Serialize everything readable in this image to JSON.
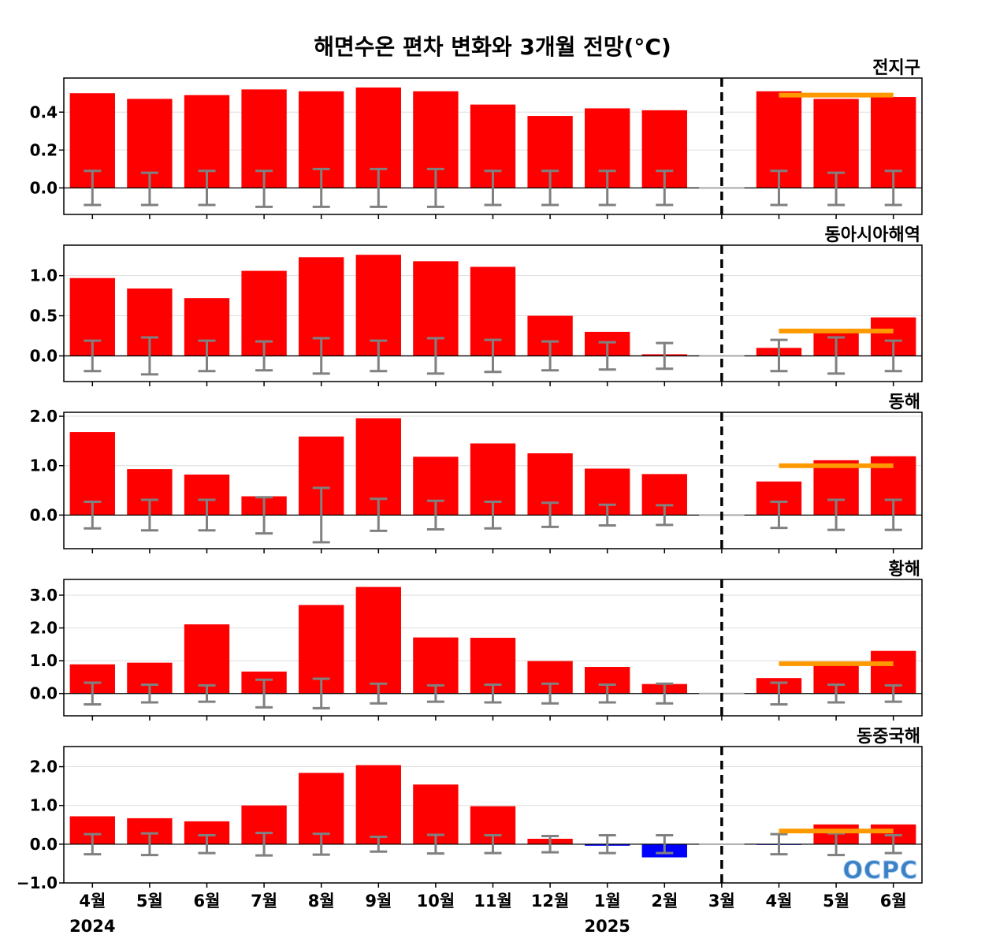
{
  "chart_data": {
    "type": "bar",
    "title": "해면수온 편차 변화와 3개월 전망(°C)",
    "months": [
      "4월",
      "5월",
      "6월",
      "7월",
      "8월",
      "9월",
      "10월",
      "11월",
      "12월",
      "1월",
      "2월",
      "3월",
      "4월",
      "5월",
      "6월"
    ],
    "years": [
      {
        "label": "2024",
        "index": 0
      },
      {
        "label": "2025",
        "index": 9
      }
    ],
    "forecast_start_index": 11,
    "logo": "OCPC",
    "colors": {
      "positive": "#ff0000",
      "negative": "#0000ff",
      "errorbar": "#808080",
      "forecast_line": "#ff9900",
      "grid": "#dddddd"
    },
    "panels": [
      {
        "name": "전지구",
        "ylim": [
          -0.14,
          0.58
        ],
        "ticks": [
          0.0,
          0.2,
          0.4
        ],
        "tick_labels": [
          "0.0",
          "0.2",
          "0.4"
        ],
        "values": [
          0.5,
          0.47,
          0.49,
          0.52,
          0.51,
          0.53,
          0.51,
          0.44,
          0.38,
          0.42,
          0.41,
          0.0,
          0.51,
          0.47,
          0.48
        ],
        "err_high": [
          0.09,
          0.08,
          0.09,
          0.09,
          0.1,
          0.1,
          0.1,
          0.09,
          0.09,
          0.09,
          0.09,
          null,
          0.09,
          0.08,
          0.09
        ],
        "err_low": [
          -0.09,
          -0.09,
          -0.09,
          -0.1,
          -0.1,
          -0.1,
          -0.1,
          -0.09,
          -0.09,
          -0.09,
          -0.09,
          null,
          -0.09,
          -0.09,
          -0.09
        ],
        "forecast_mean": 0.49
      },
      {
        "name": "동아시아해역",
        "ylim": [
          -0.32,
          1.38
        ],
        "ticks": [
          0.0,
          0.5,
          1.0
        ],
        "tick_labels": [
          "0.0",
          "0.5",
          "1.0"
        ],
        "values": [
          0.97,
          0.84,
          0.72,
          1.06,
          1.23,
          1.26,
          1.18,
          1.11,
          0.5,
          0.3,
          0.02,
          0.0,
          0.1,
          0.32,
          0.48
        ],
        "err_high": [
          0.19,
          0.23,
          0.19,
          0.18,
          0.22,
          0.19,
          0.22,
          0.2,
          0.18,
          0.17,
          0.16,
          null,
          0.2,
          0.23,
          0.19
        ],
        "err_low": [
          -0.19,
          -0.23,
          -0.19,
          -0.18,
          -0.22,
          -0.19,
          -0.22,
          -0.2,
          -0.18,
          -0.17,
          -0.16,
          null,
          -0.19,
          -0.22,
          -0.19
        ],
        "forecast_mean": 0.31
      },
      {
        "name": "동해",
        "ylim": [
          -0.68,
          2.08
        ],
        "ticks": [
          0.0,
          1.0,
          2.0
        ],
        "tick_labels": [
          "0.0",
          "1.0",
          "2.0"
        ],
        "values": [
          1.68,
          0.93,
          0.82,
          0.38,
          1.59,
          1.96,
          1.18,
          1.45,
          1.25,
          0.94,
          0.83,
          0.0,
          0.68,
          1.11,
          1.19
        ],
        "err_high": [
          0.27,
          0.31,
          0.31,
          0.36,
          0.55,
          0.33,
          0.29,
          0.27,
          0.25,
          0.21,
          0.2,
          null,
          0.27,
          0.31,
          0.31
        ],
        "err_low": [
          -0.27,
          -0.31,
          -0.31,
          -0.37,
          -0.55,
          -0.32,
          -0.29,
          -0.27,
          -0.24,
          -0.21,
          -0.2,
          null,
          -0.26,
          -0.3,
          -0.3
        ],
        "forecast_mean": 1.0
      },
      {
        "name": "황해",
        "ylim": [
          -0.68,
          3.48
        ],
        "ticks": [
          0.0,
          1.0,
          2.0,
          3.0
        ],
        "tick_labels": [
          "0.0",
          "1.0",
          "2.0",
          "3.0"
        ],
        "values": [
          0.89,
          0.94,
          2.11,
          0.67,
          2.7,
          3.25,
          1.71,
          1.7,
          0.99,
          0.81,
          0.29,
          0.0,
          0.47,
          0.93,
          1.3
        ],
        "err_high": [
          0.33,
          0.27,
          0.25,
          0.42,
          0.45,
          0.3,
          0.25,
          0.27,
          0.3,
          0.27,
          0.3,
          null,
          0.33,
          0.27,
          0.25
        ],
        "err_low": [
          -0.33,
          -0.27,
          -0.25,
          -0.42,
          -0.45,
          -0.3,
          -0.25,
          -0.27,
          -0.3,
          -0.27,
          -0.3,
          null,
          -0.33,
          -0.27,
          -0.25
        ],
        "forecast_mean": 0.91
      },
      {
        "name": "동중국해",
        "ylim": [
          -1.0,
          2.52
        ],
        "ticks": [
          -1.0,
          0.0,
          1.0,
          2.0
        ],
        "tick_labels": [
          "−1.0",
          "0.0",
          "1.0",
          "2.0"
        ],
        "values": [
          0.72,
          0.67,
          0.59,
          1.0,
          1.84,
          2.04,
          1.54,
          0.98,
          0.14,
          -0.04,
          -0.34,
          0.0,
          -0.02,
          0.51,
          0.51
        ],
        "err_high": [
          0.26,
          0.28,
          0.23,
          0.29,
          0.27,
          0.19,
          0.24,
          0.23,
          0.21,
          0.23,
          0.23,
          null,
          0.26,
          0.28,
          0.23
        ],
        "err_low": [
          -0.26,
          -0.28,
          -0.23,
          -0.29,
          -0.27,
          -0.19,
          -0.24,
          -0.23,
          -0.21,
          -0.23,
          -0.23,
          null,
          -0.26,
          -0.28,
          -0.23
        ],
        "forecast_mean": 0.34
      }
    ]
  }
}
